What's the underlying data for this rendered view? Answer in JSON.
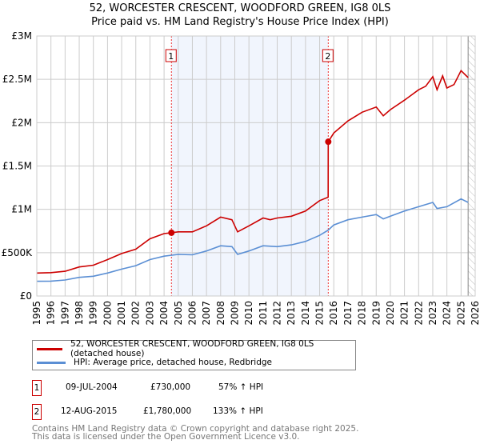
{
  "title": "52, WORCESTER CRESCENT, WOODFORD GREEN, IG8 0LS",
  "subtitle": "Price paid vs. HM Land Registry's House Price Index (HPI)",
  "chart_data": {
    "type": "line",
    "title": "52, WORCESTER CRESCENT, WOODFORD GREEN, IG8 0LS",
    "subtitle": "Price paid vs. HM Land Registry's House Price Index (HPI)",
    "xlim": [
      1995,
      2026
    ],
    "ylim": [
      0,
      3000000
    ],
    "x_ticks": [
      "1995",
      "1996",
      "1997",
      "1998",
      "1999",
      "2000",
      "2001",
      "2002",
      "2003",
      "2004",
      "2005",
      "2006",
      "2007",
      "2008",
      "2009",
      "2010",
      "2011",
      "2012",
      "2013",
      "2014",
      "2015",
      "2016",
      "2017",
      "2018",
      "2019",
      "2020",
      "2021",
      "2022",
      "2023",
      "2024",
      "2025",
      "2026"
    ],
    "y_ticks": [
      {
        "v": 0,
        "l": "£0"
      },
      {
        "v": 500000,
        "l": "£500K"
      },
      {
        "v": 1000000,
        "l": "£1M"
      },
      {
        "v": 1500000,
        "l": "£1.5M"
      },
      {
        "v": 2000000,
        "l": "£2M"
      },
      {
        "v": 2500000,
        "l": "£2.5M"
      },
      {
        "v": 3000000,
        "l": "£3M"
      }
    ],
    "grid": true,
    "shaded_range": [
      2004.52,
      2015.61
    ],
    "forecast_hatch_from": 2025.5,
    "series": [
      {
        "name": "52, WORCESTER CRESCENT, WOODFORD GREEN, IG8 0LS (detached house)",
        "color": "#cc0000",
        "x": [
          1995,
          1996,
          1997,
          1998,
          1999,
          2000,
          2001,
          2002,
          2003,
          2004,
          2004.52,
          2005,
          2006,
          2007,
          2008,
          2008.8,
          2009.2,
          2010,
          2011,
          2011.5,
          2012,
          2013,
          2014,
          2015,
          2015.6,
          2015.61,
          2016,
          2017,
          2018,
          2019,
          2019.5,
          2020,
          2021,
          2022,
          2022.5,
          2023,
          2023.3,
          2023.7,
          2024,
          2024.5,
          2025,
          2025.5
        ],
        "y": [
          265000,
          270000,
          285000,
          335000,
          355000,
          420000,
          490000,
          540000,
          660000,
          720000,
          730000,
          740000,
          740000,
          810000,
          910000,
          880000,
          740000,
          810000,
          900000,
          880000,
          900000,
          920000,
          980000,
          1100000,
          1140000,
          1780000,
          1880000,
          2020000,
          2120000,
          2180000,
          2080000,
          2150000,
          2260000,
          2380000,
          2420000,
          2530000,
          2380000,
          2540000,
          2400000,
          2440000,
          2600000,
          2520000
        ]
      },
      {
        "name": "HPI: Average price, detached house, Redbridge",
        "color": "#5b8fd4",
        "x": [
          1995,
          1996,
          1997,
          1998,
          1999,
          2000,
          2001,
          2002,
          2003,
          2004,
          2005,
          2006,
          2007,
          2008,
          2008.8,
          2009.2,
          2010,
          2011,
          2012,
          2013,
          2014,
          2015,
          2015.6,
          2016,
          2017,
          2018,
          2019,
          2019.5,
          2020,
          2021,
          2022,
          2023,
          2023.3,
          2024,
          2025,
          2025.5
        ],
        "y": [
          170000,
          172000,
          185000,
          215000,
          228000,
          265000,
          310000,
          350000,
          420000,
          460000,
          480000,
          475000,
          520000,
          580000,
          570000,
          480000,
          520000,
          580000,
          570000,
          590000,
          630000,
          700000,
          760000,
          820000,
          880000,
          910000,
          940000,
          890000,
          920000,
          980000,
          1030000,
          1080000,
          1010000,
          1030000,
          1120000,
          1080000
        ]
      }
    ],
    "markers": [
      {
        "label": "1",
        "x": 2004.52,
        "y": 730000
      },
      {
        "label": "2",
        "x": 2015.61,
        "y": 1780000
      }
    ]
  },
  "legend": [
    {
      "label": "52, WORCESTER CRESCENT, WOODFORD GREEN, IG8 0LS (detached house)",
      "color": "#cc0000"
    },
    {
      "label": "HPI: Average price, detached house, Redbridge",
      "color": "#5b8fd4"
    }
  ],
  "transactions": [
    {
      "num": "1",
      "date": "09-JUL-2004",
      "price": "£730,000",
      "hpi": "57% ↑ HPI"
    },
    {
      "num": "2",
      "date": "12-AUG-2015",
      "price": "£1,780,000",
      "hpi": "133% ↑ HPI"
    }
  ],
  "footer": [
    "Contains HM Land Registry data © Crown copyright and database right 2025.",
    "This data is licensed under the Open Government Licence v3.0."
  ]
}
